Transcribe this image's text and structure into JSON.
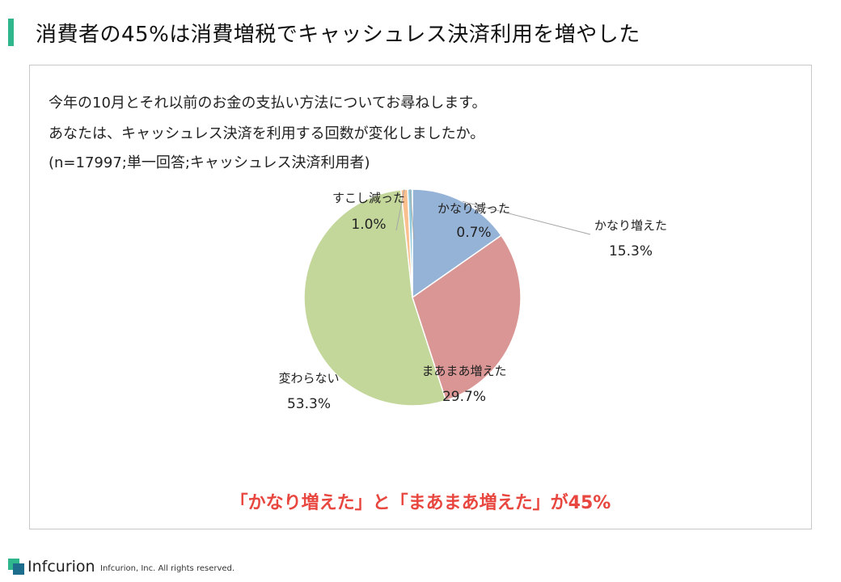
{
  "title": "消費者の45%は消費増税でキャッシュレス決済利用を増やした",
  "question": {
    "line1": "今年の10月とそれ以前のお金の支払い方法についてお尋ねします。",
    "line2": "あなたは、キャッシュレス決済を利用する回数が変化しましたか。",
    "line3": "(n=17997;単一回答;キャッシュレス決済利用者)"
  },
  "emphasis": "「かなり増えた」と「まあまあ増えた」が45%",
  "colors": {
    "accent": "#2fb68c",
    "emphasis": "#e8473f"
  },
  "chart_data": {
    "type": "pie",
    "start": "12 o'clock, clockwise",
    "slices": [
      {
        "label": "かなり増えた",
        "value": 15.3,
        "display": "15.3%",
        "color": "#95b3d7"
      },
      {
        "label": "まあまあ増えた",
        "value": 29.7,
        "display": "29.7%",
        "color": "#da9694"
      },
      {
        "label": "変わらない",
        "value": 53.3,
        "display": "53.3%",
        "color": "#c4d79b"
      },
      {
        "label": "すこし減った",
        "value": 1.0,
        "display": "1.0%",
        "color": "#fabf8f"
      },
      {
        "label": "かなり減った",
        "value": 0.7,
        "display": "0.7%",
        "color": "#93cddd"
      }
    ]
  },
  "footer": {
    "brand": "Infcurion",
    "copyright": "Infcurion, Inc.  All rights reserved."
  }
}
